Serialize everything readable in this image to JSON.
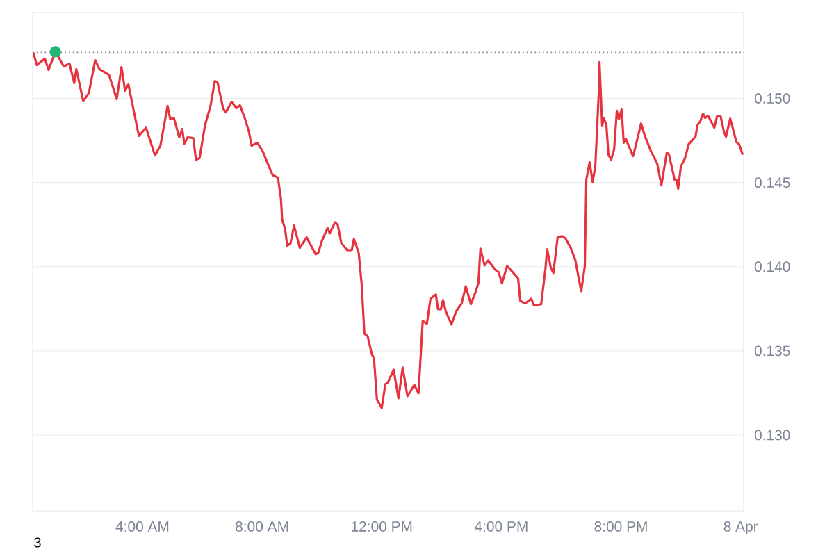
{
  "chart_data": {
    "type": "line",
    "xlim": [
      0.33,
      24.1
    ],
    "ylim": [
      0.1255,
      0.1551
    ],
    "xticks": [
      {
        "value": 4,
        "label": "4:00 AM"
      },
      {
        "value": 8,
        "label": "8:00 AM"
      },
      {
        "value": 12,
        "label": "12:00 PM"
      },
      {
        "value": 16,
        "label": "4:00 PM"
      },
      {
        "value": 20,
        "label": "8:00 PM"
      },
      {
        "value": 24,
        "label": "8 Apr"
      }
    ],
    "yticks": [
      {
        "value": 0.13,
        "label": "0.130"
      },
      {
        "value": 0.135,
        "label": "0.135"
      },
      {
        "value": 0.14,
        "label": "0.140"
      },
      {
        "value": 0.145,
        "label": "0.145"
      },
      {
        "value": 0.15,
        "label": "0.150"
      }
    ],
    "grid": "y",
    "marker": "none",
    "line_style": "solid",
    "ref_lines": [
      {
        "axis": "y",
        "value": 0.15273,
        "color": "#8a8f99",
        "line_style": "dotted"
      }
    ],
    "annotations": [
      "3"
    ],
    "series": [
      {
        "color": "#e5343f",
        "x": [
          0.35,
          0.47,
          0.74,
          0.86,
          1.09,
          1.37,
          1.56,
          1.72,
          1.79,
          2.02,
          2.21,
          2.42,
          2.56,
          2.88,
          3.14,
          3.3,
          3.42,
          3.53,
          3.88,
          4.12,
          4.42,
          4.6,
          4.84,
          4.93,
          5.05,
          5.23,
          5.33,
          5.4,
          5.51,
          5.7,
          5.79,
          5.91,
          6.09,
          6.28,
          6.42,
          6.51,
          6.7,
          6.79,
          6.98,
          7.14,
          7.26,
          7.42,
          7.56,
          7.65,
          7.84,
          8.02,
          8.21,
          8.35,
          8.53,
          8.63,
          8.67,
          8.77,
          8.84,
          8.95,
          9.07,
          9.26,
          9.49,
          9.79,
          9.88,
          10.0,
          10.19,
          10.26,
          10.44,
          10.53,
          10.65,
          10.84,
          11.0,
          11.07,
          11.23,
          11.33,
          11.42,
          11.53,
          11.67,
          11.74,
          11.84,
          12.0,
          12.12,
          12.21,
          12.4,
          12.56,
          12.7,
          12.86,
          13.09,
          13.23,
          13.37,
          13.51,
          13.63,
          13.81,
          13.88,
          13.98,
          14.05,
          14.14,
          14.33,
          14.49,
          14.67,
          14.81,
          14.98,
          15.14,
          15.23,
          15.3,
          15.44,
          15.56,
          15.79,
          15.91,
          16.02,
          16.19,
          16.42,
          16.56,
          16.63,
          16.79,
          17.0,
          17.09,
          17.33,
          17.47,
          17.53,
          17.65,
          17.74,
          17.88,
          18.02,
          18.14,
          18.33,
          18.47,
          18.56,
          18.67,
          18.79,
          18.84,
          18.95,
          19.05,
          19.14,
          19.26,
          19.28,
          19.37,
          19.42,
          19.51,
          19.58,
          19.67,
          19.77,
          19.86,
          19.93,
          20.02,
          20.09,
          20.16,
          20.4,
          20.47,
          20.67,
          20.79,
          20.98,
          21.21,
          21.35,
          21.53,
          21.6,
          21.79,
          21.86,
          21.91,
          22.0,
          22.14,
          22.26,
          22.49,
          22.56,
          22.65,
          22.74,
          22.81,
          22.91,
          23.12,
          23.21,
          23.33,
          23.44,
          23.51,
          23.65,
          23.86,
          23.95,
          24.07
        ],
        "values": [
          0.15273,
          0.15198,
          0.15236,
          0.15169,
          0.15277,
          0.1519,
          0.15207,
          0.15091,
          0.15174,
          0.14983,
          0.15033,
          0.15227,
          0.15174,
          0.1514,
          0.14996,
          0.15186,
          0.15045,
          0.15083,
          0.14777,
          0.14826,
          0.14661,
          0.14719,
          0.14955,
          0.14876,
          0.14884,
          0.14769,
          0.14818,
          0.14731,
          0.14769,
          0.14764,
          0.14636,
          0.14645,
          0.14839,
          0.14959,
          0.15103,
          0.15095,
          0.14938,
          0.14917,
          0.14979,
          0.14942,
          0.14959,
          0.14884,
          0.14802,
          0.14719,
          0.14736,
          0.14686,
          0.14603,
          0.14545,
          0.14529,
          0.14405,
          0.14281,
          0.14223,
          0.14124,
          0.1414,
          0.14244,
          0.14112,
          0.14174,
          0.14074,
          0.14083,
          0.14153,
          0.14231,
          0.14198,
          0.14264,
          0.14248,
          0.1414,
          0.14099,
          0.14099,
          0.14165,
          0.14083,
          0.13893,
          0.13603,
          0.13587,
          0.13479,
          0.13459,
          0.13211,
          0.13161,
          0.13302,
          0.13314,
          0.13388,
          0.13219,
          0.13401,
          0.13231,
          0.13298,
          0.13248,
          0.13678,
          0.13661,
          0.1381,
          0.13835,
          0.13748,
          0.13748,
          0.13802,
          0.13736,
          0.13657,
          0.13736,
          0.13781,
          0.13884,
          0.13777,
          0.13851,
          0.13901,
          0.14107,
          0.14008,
          0.14037,
          0.13983,
          0.13967,
          0.13901,
          0.14004,
          0.13959,
          0.1393,
          0.13798,
          0.13781,
          0.1381,
          0.13769,
          0.13777,
          0.13983,
          0.14103,
          0.13996,
          0.13963,
          0.14174,
          0.14182,
          0.14169,
          0.14107,
          0.14041,
          0.13955,
          0.13855,
          0.14004,
          0.14517,
          0.1462,
          0.14504,
          0.14595,
          0.15045,
          0.15215,
          0.14835,
          0.14884,
          0.14843,
          0.14665,
          0.14636,
          0.14698,
          0.14926,
          0.14876,
          0.14934,
          0.14736,
          0.1476,
          0.14657,
          0.14702,
          0.14851,
          0.14781,
          0.14694,
          0.14612,
          0.14483,
          0.14678,
          0.14669,
          0.14517,
          0.14517,
          0.14463,
          0.14595,
          0.14645,
          0.14727,
          0.14773,
          0.14843,
          0.14864,
          0.14909,
          0.14884,
          0.14897,
          0.14826,
          0.14893,
          0.14893,
          0.14802,
          0.14773,
          0.1488,
          0.1474,
          0.14727,
          0.14665
        ]
      },
      {
        "type": "scatter",
        "marker": "circle",
        "color": "#22b573",
        "x": [
          1.09
        ],
        "values": [
          0.15277
        ]
      }
    ]
  }
}
